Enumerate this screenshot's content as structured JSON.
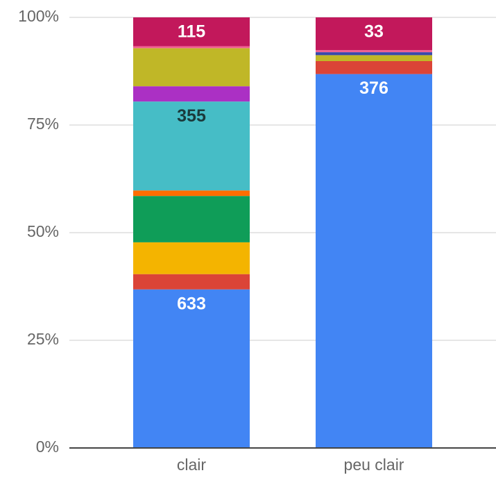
{
  "chart_data": {
    "type": "stacked_percent_bar",
    "categories": [
      "clair",
      "peu clair"
    ],
    "ylim": [
      0,
      100
    ],
    "yticks": [
      {
        "value": 0,
        "label": "0%"
      },
      {
        "value": 25,
        "label": "25%"
      },
      {
        "value": 50,
        "label": "50%"
      },
      {
        "value": 75,
        "label": "75%"
      },
      {
        "value": 100,
        "label": "100%"
      }
    ],
    "grid": true,
    "series": [
      {
        "color": "#4285f4",
        "values": [
          633,
          376
        ],
        "value_labels": [
          "633",
          "376"
        ],
        "label_color": "#ffffff"
      },
      {
        "color": "#db4437",
        "values": [
          61,
          13
        ]
      },
      {
        "color": "#f4b400",
        "values": [
          127,
          null
        ]
      },
      {
        "color": "#0f9d58",
        "values": [
          185,
          null
        ]
      },
      {
        "color": "#ff6d00",
        "values": [
          22,
          null
        ]
      },
      {
        "color": "#46bdc6",
        "values": [
          355,
          null
        ],
        "value_labels": [
          "355",
          null
        ],
        "label_color": "#1a3a3c"
      },
      {
        "color": "#ab30c4",
        "values": [
          61,
          null
        ]
      },
      {
        "color": "#c0b727",
        "values": [
          152,
          6
        ]
      },
      {
        "color": "#3949ab",
        "values": [
          null,
          3
        ]
      },
      {
        "color": "#f06292",
        "values": [
          8,
          2
        ]
      },
      {
        "color": "#c2185b",
        "values": [
          115,
          33
        ],
        "value_labels": [
          "115",
          "33"
        ],
        "label_color": "#ffffff"
      }
    ]
  }
}
